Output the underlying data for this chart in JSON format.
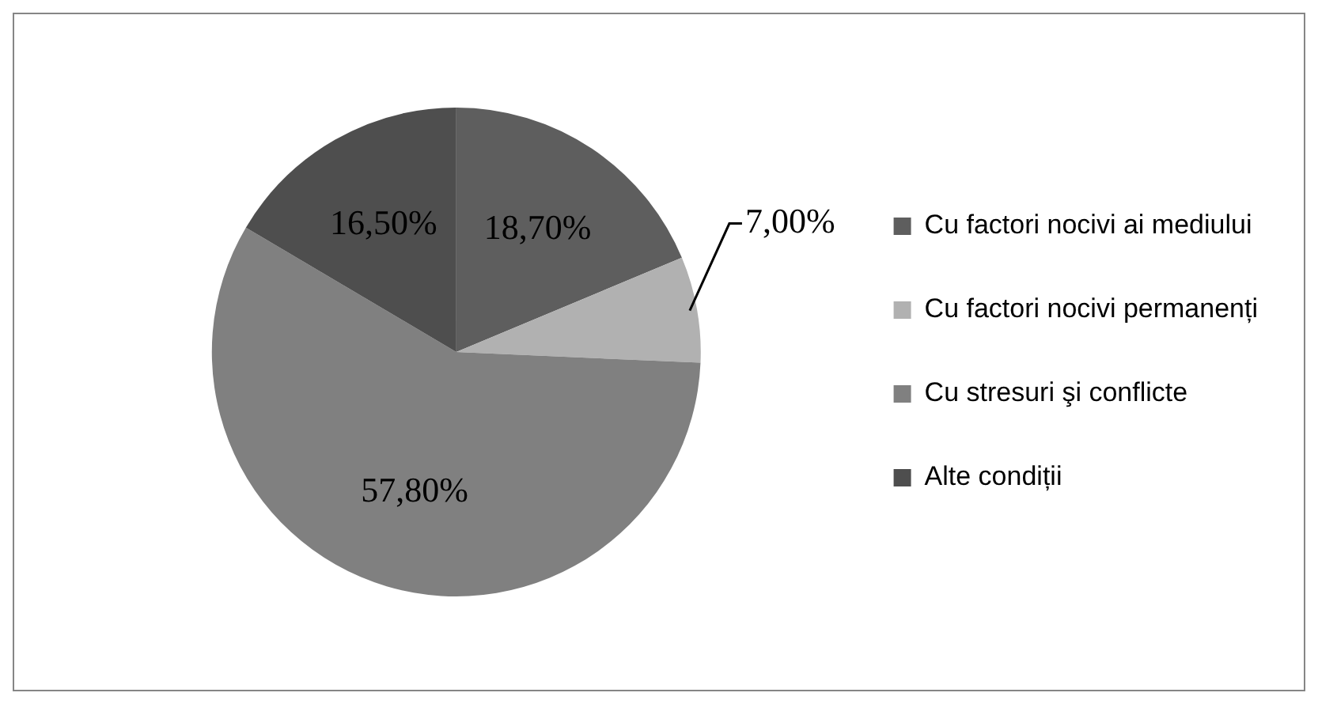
{
  "chart_data": {
    "type": "pie",
    "categories": [
      "Cu factori nocivi ai mediului",
      "Cu factori nocivi permanenți",
      "Cu stresuri şi conflicte",
      "Alte condiții"
    ],
    "values": [
      18.7,
      7.0,
      57.8,
      16.5
    ],
    "colors": [
      "#5e5e5e",
      "#b1b1b1",
      "#808080",
      "#4e4e4e"
    ],
    "value_labels": [
      "18,70%",
      "7,00%",
      "57,80%",
      "16,50%"
    ],
    "legend": "right"
  }
}
